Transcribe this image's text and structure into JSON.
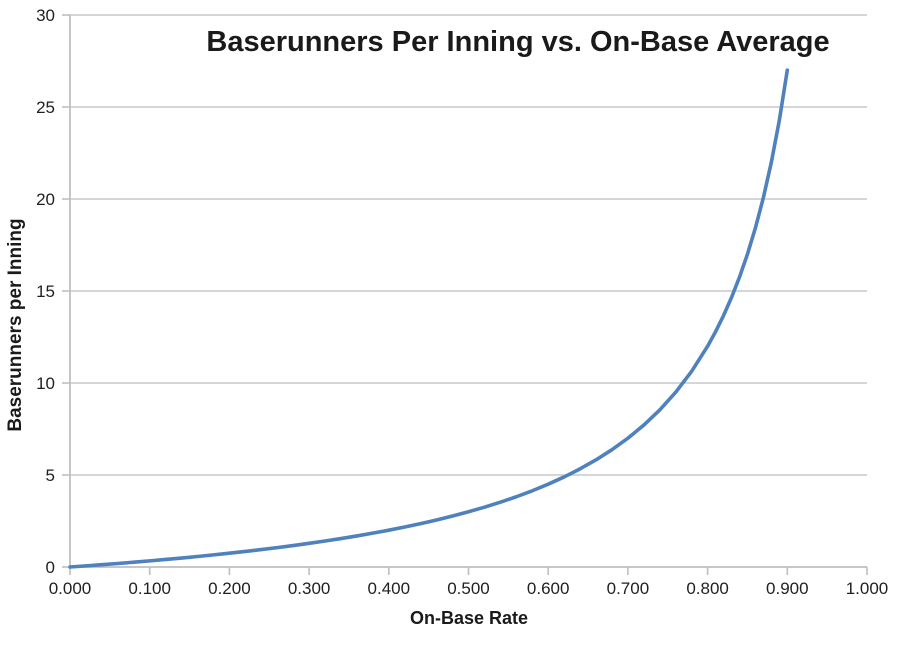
{
  "chart_data": {
    "type": "line",
    "title": "Baserunners Per Inning vs. On-Base Average",
    "xlabel": "On-Base Rate",
    "ylabel": "Baserunners per Inning",
    "xlim": [
      0.0,
      1.0
    ],
    "ylim": [
      0,
      30
    ],
    "x_ticks": [
      0.0,
      0.1,
      0.2,
      0.3,
      0.4,
      0.5,
      0.6,
      0.7,
      0.8,
      0.9,
      1.0
    ],
    "x_tick_labels": [
      "0.000",
      "0.100",
      "0.200",
      "0.300",
      "0.400",
      "0.500",
      "0.600",
      "0.700",
      "0.800",
      "0.900",
      "1.000"
    ],
    "y_ticks": [
      0,
      5,
      10,
      15,
      20,
      25,
      30
    ],
    "y_tick_labels": [
      "0",
      "5",
      "10",
      "15",
      "20",
      "25",
      "30"
    ],
    "grid": "horizontal-only",
    "legend_position": "none",
    "series": [
      {
        "color": "#4F81BD",
        "x": [
          0,
          0.02,
          0.04,
          0.06,
          0.08,
          0.1,
          0.12,
          0.14,
          0.16,
          0.18,
          0.2,
          0.22,
          0.24,
          0.26,
          0.28,
          0.3,
          0.32,
          0.34,
          0.36,
          0.38,
          0.4,
          0.42,
          0.44,
          0.46,
          0.48,
          0.5,
          0.52,
          0.54,
          0.56,
          0.58,
          0.6,
          0.62,
          0.64,
          0.66,
          0.68,
          0.7,
          0.72,
          0.74,
          0.76,
          0.78,
          0.8,
          0.81,
          0.82,
          0.83,
          0.84,
          0.85,
          0.86,
          0.87,
          0.88,
          0.89,
          0.9
        ],
        "y": [
          0,
          0.061,
          0.125,
          0.191,
          0.261,
          0.333,
          0.409,
          0.488,
          0.571,
          0.659,
          0.75,
          0.846,
          0.947,
          1.054,
          1.167,
          1.286,
          1.412,
          1.545,
          1.688,
          1.839,
          2,
          2.172,
          2.357,
          2.556,
          2.769,
          3,
          3.25,
          3.522,
          3.818,
          4.143,
          4.5,
          4.895,
          5.333,
          5.824,
          6.375,
          7,
          7.714,
          8.538,
          9.5,
          10.636,
          12,
          12.789,
          13.667,
          14.647,
          15.75,
          17,
          18.429,
          20.077,
          22,
          24.273,
          27
        ]
      }
    ]
  },
  "colors": {
    "line": "#4F81BD",
    "gridline": "#C9C9C9",
    "axis": "#BFBFBF",
    "text": "#1A1A1A",
    "background": "#FFFFFF"
  }
}
